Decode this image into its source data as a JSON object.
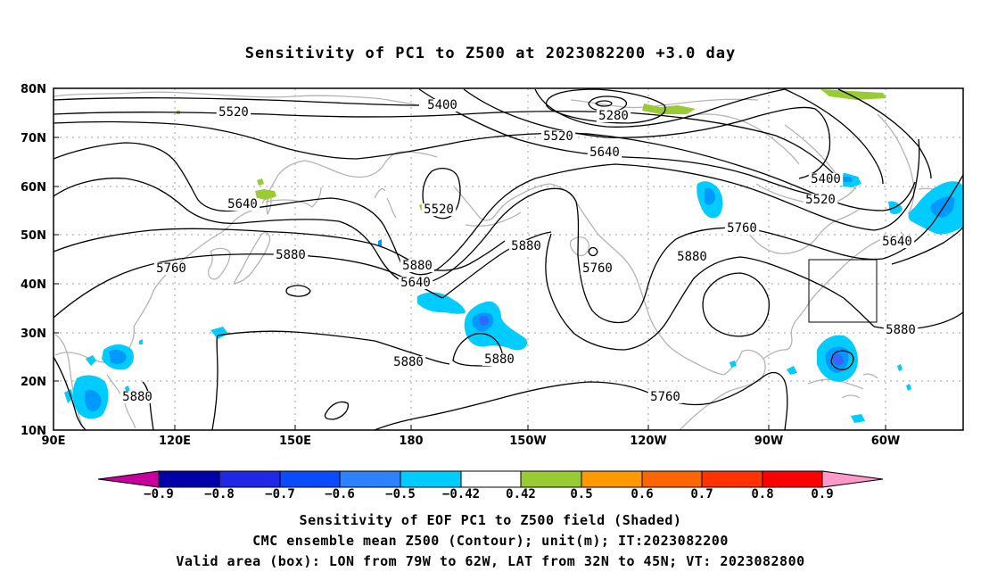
{
  "title": "Sensitivity of PC1 to Z500 at 2023082200 +3.0 day",
  "map": {
    "lat_labels": [
      "80N",
      "70N",
      "60N",
      "50N",
      "40N",
      "30N",
      "20N",
      "10N"
    ],
    "lon_labels": [
      "90E",
      "120E",
      "150E",
      "180",
      "150W",
      "120W",
      "90W",
      "60W"
    ],
    "contour_levels": [
      "5280",
      "5400",
      "5520",
      "5640",
      "5760",
      "5880"
    ],
    "contour_labels": [
      {
        "text": "5520"
      },
      {
        "text": "5400"
      },
      {
        "text": "5280"
      },
      {
        "text": "5520"
      },
      {
        "text": "5640"
      },
      {
        "text": "5400"
      },
      {
        "text": "5520"
      },
      {
        "text": "5640"
      },
      {
        "text": "5520"
      },
      {
        "text": "5760"
      },
      {
        "text": "5640"
      },
      {
        "text": "5760"
      },
      {
        "text": "5880"
      },
      {
        "text": "5880"
      },
      {
        "text": "5760"
      },
      {
        "text": "5880"
      },
      {
        "text": "5640"
      },
      {
        "text": "5880"
      },
      {
        "text": "5880"
      },
      {
        "text": "5880"
      },
      {
        "text": "5880"
      },
      {
        "text": "5880"
      },
      {
        "text": "5760"
      }
    ],
    "valid_box": {
      "lon_from": "79W",
      "lon_to": "62W",
      "lat_from": "32N",
      "lat_to": "45N"
    },
    "colors": {
      "green": "#99cc33",
      "cyan": "#00ccff",
      "light_blue": "#0099ff",
      "blue": "#3366ff",
      "land": "#b4b4b4"
    }
  },
  "colorbar": {
    "labels": [
      "−0.9",
      "−0.8",
      "−0.7",
      "−0.6",
      "−0.5",
      "−0.42",
      "0.42",
      "0.5",
      "0.6",
      "0.7",
      "0.8",
      "0.9"
    ],
    "colors": [
      "#c8009e",
      "#0000aa",
      "#1e28e6",
      "#0a4bff",
      "#2d82ff",
      "#00ccff",
      "#ffffff",
      "#99cc33",
      "#ff9900",
      "#ff6600",
      "#ff3300",
      "#ff0000",
      "#ff99cc"
    ]
  },
  "captions": {
    "line1": "Sensitivity of EOF PC1 to Z500 field (Shaded)",
    "line2": "CMC ensemble mean Z500 (Contour); unit(m); IT:2023082200",
    "line3": "Valid area (box): LON from 79W to 62W, LAT from 32N to 45N; VT: 2023082800"
  }
}
